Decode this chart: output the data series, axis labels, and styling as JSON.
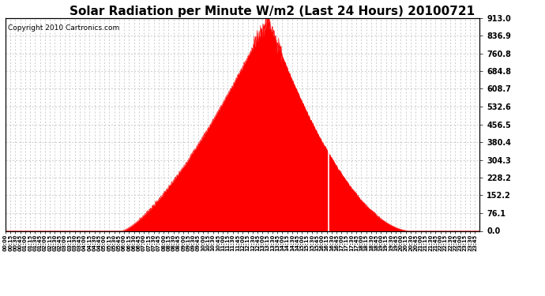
{
  "title": "Solar Radiation per Minute W/m2 (Last 24 Hours) 20100721",
  "copyright": "Copyright 2010 Cartronics.com",
  "y_max": 913.0,
  "y_min": 0.0,
  "y_ticks": [
    0.0,
    76.1,
    152.2,
    228.2,
    304.3,
    380.4,
    456.5,
    532.6,
    608.7,
    684.8,
    760.8,
    836.9,
    913.0
  ],
  "fill_color": "#FF0000",
  "line_color": "#FF0000",
  "bg_color": "#FFFFFF",
  "plot_bg_color": "#FFFFFF",
  "grid_color": "#BBBBBB",
  "white_line_minute": 980,
  "dashed_line_color": "#FF0000",
  "title_fontsize": 11,
  "copyright_fontsize": 6.5,
  "sunrise_min": 352,
  "sunset_min": 1228,
  "peak_min": 795,
  "peak_val": 913.0,
  "white_vline_min": 980
}
